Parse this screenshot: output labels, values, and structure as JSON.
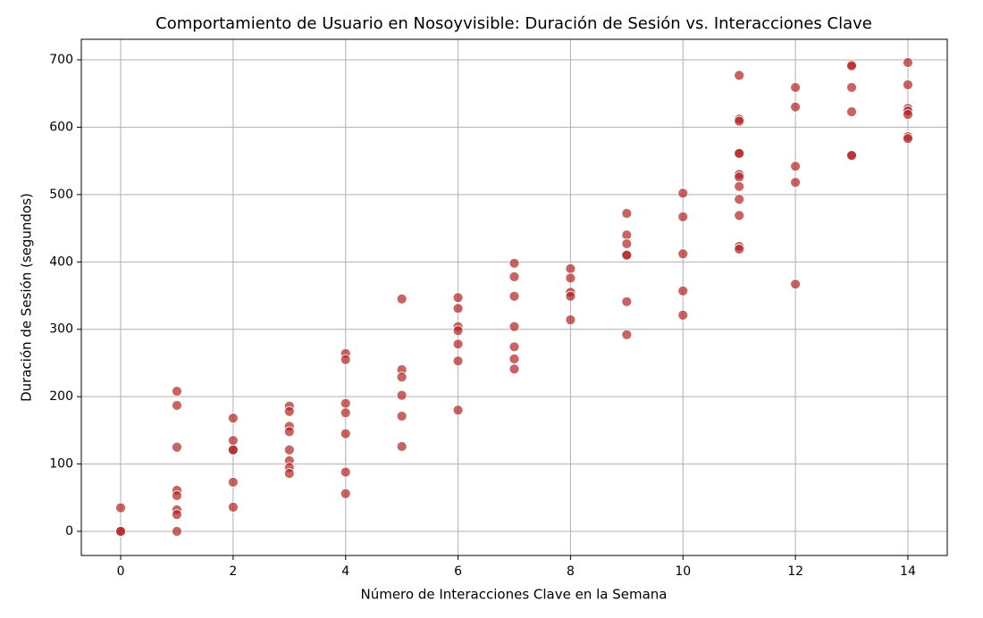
{
  "chart_data": {
    "type": "scatter",
    "title": "Comportamiento de Usuario en Nosoyvisible: Duración de Sesión vs. Interacciones Clave",
    "x_label": "Número de Interacciones Clave en la Semana",
    "y_label": "Duración de Sesión (segundos)",
    "color": "#b22222",
    "grid": true,
    "xlim": [
      -0.7,
      14.7
    ],
    "ylim": [
      -35.8,
      730.5
    ],
    "xticks": [
      0,
      2,
      4,
      6,
      8,
      10,
      12,
      14
    ],
    "yticks": [
      0,
      100,
      200,
      300,
      400,
      500,
      600,
      700
    ],
    "x": [
      0,
      0,
      0,
      1,
      1,
      1,
      1,
      1,
      1,
      1,
      1,
      2,
      2,
      2,
      2,
      2,
      2,
      3,
      3,
      3,
      3,
      3,
      3,
      3,
      3,
      4,
      4,
      4,
      4,
      4,
      4,
      4,
      5,
      5,
      5,
      5,
      5,
      5,
      6,
      6,
      6,
      6,
      6,
      6,
      6,
      7,
      7,
      7,
      7,
      7,
      7,
      7,
      8,
      8,
      8,
      8,
      8,
      9,
      9,
      9,
      9,
      9,
      9,
      9,
      10,
      10,
      10,
      10,
      10,
      11,
      11,
      11,
      11,
      11,
      11,
      11,
      11,
      11,
      11,
      11,
      11,
      12,
      12,
      12,
      12,
      12,
      13,
      13,
      13,
      13,
      13,
      13,
      14,
      14,
      14,
      14,
      14,
      14,
      14
    ],
    "y": [
      0,
      0,
      35,
      208,
      187,
      125,
      61,
      53,
      32,
      25,
      0,
      168,
      135,
      121,
      121,
      73,
      36,
      186,
      178,
      156,
      148,
      121,
      105,
      95,
      86,
      264,
      255,
      190,
      176,
      145,
      88,
      56,
      345,
      240,
      229,
      202,
      171,
      126,
      347,
      331,
      304,
      298,
      278,
      253,
      180,
      398,
      378,
      349,
      304,
      274,
      256,
      241,
      390,
      376,
      355,
      349,
      314,
      472,
      440,
      427,
      411,
      410,
      341,
      292,
      502,
      467,
      412,
      357,
      321,
      677,
      612,
      609,
      562,
      561,
      530,
      526,
      512,
      493,
      469,
      423,
      419,
      659,
      630,
      542,
      518,
      367,
      693,
      691,
      659,
      623,
      559,
      558,
      696,
      663,
      628,
      624,
      619,
      586,
      583
    ]
  }
}
